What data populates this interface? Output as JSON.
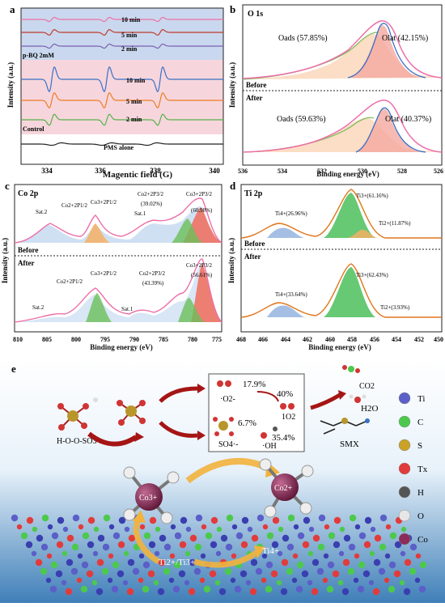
{
  "panel_a": {
    "letter": "a",
    "ylabel": "Intensity (a.u.)",
    "xlabel": "Magentic field (G)",
    "xticks": [
      "334",
      "336",
      "338",
      "340"
    ],
    "group1_label": "p-BQ 2mM",
    "group1_times": [
      "10 min",
      "5 min",
      "2 min"
    ],
    "group2_label": "Control",
    "group2_times": [
      "10 min",
      "5 min",
      "2 min"
    ],
    "baseline_label": "PMS alone",
    "colors": {
      "pink": "#ee6fa8",
      "red": "#c0392b",
      "purple": "#7b5fb3",
      "blue": "#3b6fc6",
      "orange": "#f07b24",
      "green": "#56b04a",
      "black": "#222222"
    }
  },
  "panel_b": {
    "letter": "b",
    "title": "O 1s",
    "ylabel": "Intensity (a.u.)",
    "xlabel": "Binding energy (eV)",
    "xticks": [
      "536",
      "534",
      "532",
      "530",
      "528",
      "526"
    ],
    "before": "Before",
    "after": "After",
    "top_oads": "Oads (57.85%)",
    "top_olat": "Olat (42.15%)",
    "bot_oads": "Oads (59.63%)",
    "bot_olat": "Olat (40.37%)"
  },
  "panel_c": {
    "letter": "c",
    "title": "Co 2p",
    "ylabel": "Intensity (a.u.)",
    "xlabel": "Binding energy (eV)",
    "xticks": [
      "810",
      "805",
      "800",
      "795",
      "790",
      "785",
      "780",
      "775"
    ],
    "before": "Before",
    "after": "After",
    "top_labels": [
      "Sat.2",
      "Co2+2P1/2",
      "Co3+2P1/2",
      "Sat.1",
      "Co2+2P3/2",
      "(39.02%)",
      "Co3+2P3/2",
      "(60.98%)"
    ],
    "bot_labels": [
      "Sat.2",
      "Co2+2P1/2",
      "Co3+2P1/2",
      "Sat.1",
      "Co2+2P3/2",
      "(43.39%)",
      "Co3+2P3/2",
      "(56.61%)"
    ]
  },
  "panel_d": {
    "letter": "d",
    "title": "Ti 2p",
    "ylabel": "Intensity (a.u.)",
    "xlabel": "Binding energy (eV)",
    "xticks": [
      "468",
      "466",
      "464",
      "462",
      "460",
      "458",
      "456",
      "454",
      "452",
      "450"
    ],
    "before": "Before",
    "after": "After",
    "top_labels": [
      "Ti4+(26.96%)",
      "Ti3+(61.16%)",
      "Ti2+(11.87%)"
    ],
    "bot_labels": [
      "Ti4+(33.64%)",
      "Ti3+(62.43%)",
      "Ti2+(3.93%)"
    ]
  },
  "panel_e": {
    "letter": "e",
    "pms_label": "H-O-O-SO3",
    "pct_o2": "17.9%",
    "o2_radical": "·O2-",
    "pct_1o2": "40%",
    "singlet": "1O2",
    "pct_so4": "6.7%",
    "so4": "SO4·-",
    "pct_oh": "35.4%",
    "oh": "·OH",
    "co2": "CO2",
    "h2o": "H2O",
    "smx": "SMX",
    "co3": "Co3+",
    "co2plus": "Co2+",
    "ti_couple": "Ti2+/Ti3+",
    "ti4": "Ti4+",
    "legend": [
      {
        "label": "Ti",
        "color": "#5b5fc7"
      },
      {
        "label": "C",
        "color": "#4cc94c"
      },
      {
        "label": "S",
        "color": "#c9a227"
      },
      {
        "label": "Tx",
        "color": "#e23b3b"
      },
      {
        "label": "H",
        "color": "#555555"
      },
      {
        "label": "O",
        "color": "#e6e6e6"
      },
      {
        "label": "Co",
        "color": "#8a2d5a"
      }
    ]
  }
}
